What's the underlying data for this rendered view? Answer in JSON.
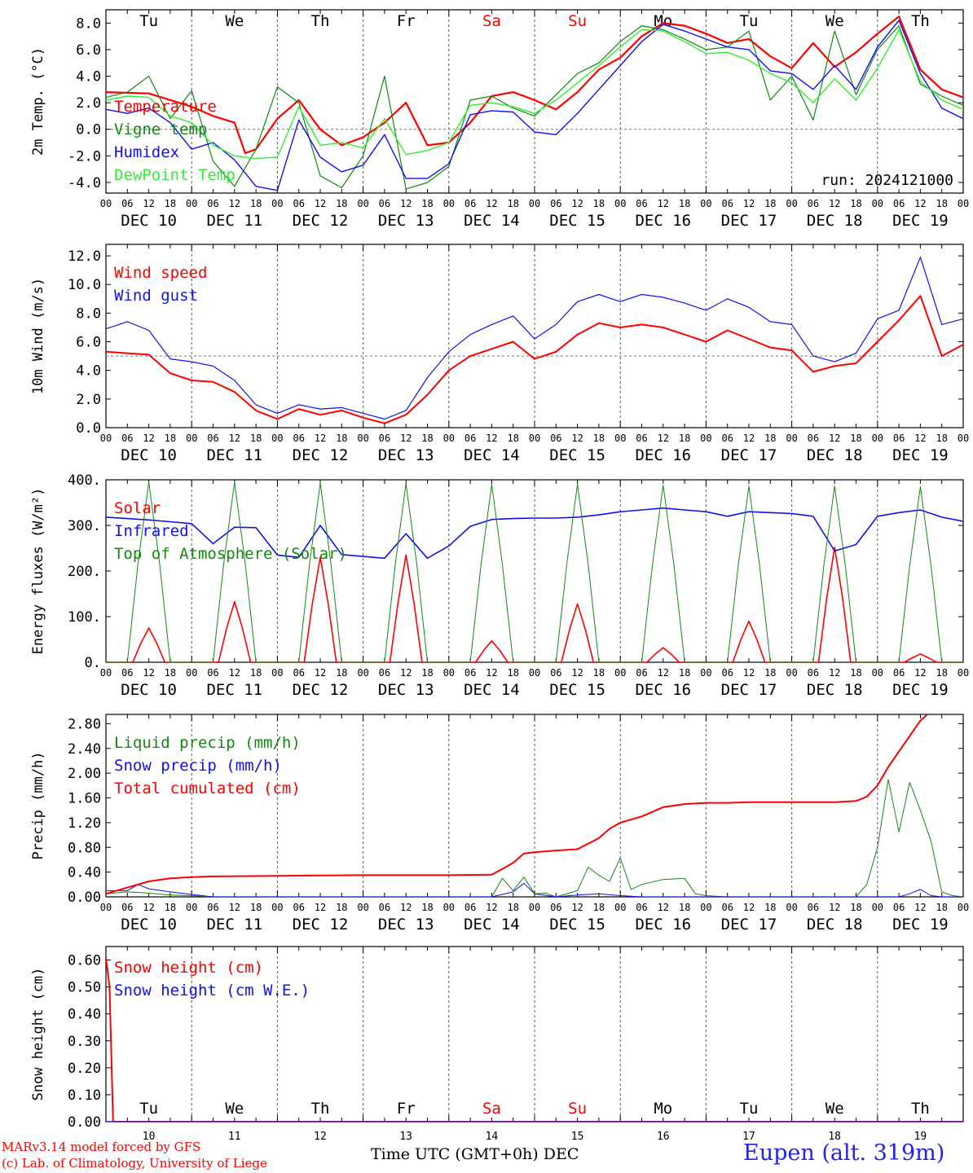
{
  "footer": {
    "credit_line1": "MARv3.14 model forced by GFS",
    "credit_line2": "(c) Lab. of Climatology, University of Liege",
    "x_title": "Time UTC (GMT+0h) DEC",
    "station": "Eupen (alt. 319m)"
  },
  "colors": {
    "red": "#ff0000",
    "green": "#118811",
    "blue": "#1111ee",
    "lightgreen": "#33ee33",
    "grid": "#555555"
  },
  "days": {
    "weekday_labels": [
      "Tu",
      "We",
      "Th",
      "Fr",
      "Sa",
      "Su",
      "Mo",
      "Tu",
      "We",
      "Th"
    ],
    "weekend_flags": [
      false,
      false,
      false,
      false,
      true,
      true,
      false,
      false,
      false,
      false
    ],
    "date_labels": [
      "DEC 10",
      "DEC 11",
      "DEC 12",
      "DEC 13",
      "DEC 14",
      "DEC 15",
      "DEC 16",
      "DEC 17",
      "DEC 18",
      "DEC 19"
    ],
    "day_numbers": [
      "10",
      "11",
      "12",
      "13",
      "14",
      "15",
      "16",
      "17",
      "18",
      "19"
    ],
    "hour_ticks": [
      "00",
      "06",
      "12",
      "18"
    ]
  },
  "chart_data": [
    {
      "type": "line",
      "ylabel": "2m Temp. (°C)",
      "ylim": [
        -4.8,
        9.0
      ],
      "yticks": [
        "-4.0",
        "-2.0",
        "0.0",
        "2.0",
        "4.0",
        "6.0",
        "8.0"
      ],
      "ytick_values": [
        -4,
        -2,
        0,
        2,
        4,
        6,
        8
      ],
      "reference_line": 0,
      "annotation": "run: 2024121000",
      "x_unit": "hours since DEC 10 00 UTC",
      "series": [
        {
          "name": "Temperature",
          "color": "#ff0000",
          "width": 2.2,
          "x": [
            0,
            12,
            24,
            30,
            36,
            39,
            42,
            48,
            54,
            60,
            66,
            72,
            78,
            84,
            90,
            96,
            102,
            108,
            114,
            120,
            126,
            132,
            138,
            144,
            150,
            156,
            162,
            168,
            174,
            180,
            186,
            192,
            198,
            204,
            210,
            216,
            222,
            228,
            234,
            240
          ],
          "y": [
            2.8,
            2.7,
            1.7,
            1.0,
            0.5,
            -1.8,
            -1.5,
            0.8,
            2.2,
            0.0,
            -1.2,
            -0.6,
            0.5,
            2.0,
            -1.2,
            -1.0,
            0.5,
            2.5,
            2.8,
            2.2,
            1.5,
            2.8,
            4.5,
            5.4,
            7.0,
            8.0,
            7.8,
            7.2,
            6.5,
            6.8,
            5.5,
            4.6,
            6.5,
            4.7,
            5.8,
            7.2,
            8.5,
            4.5,
            3.0,
            2.4
          ]
        },
        {
          "name": "Vigne temp",
          "color": "#118811",
          "width": 1.2,
          "x": [
            0,
            6,
            12,
            18,
            24,
            30,
            36,
            42,
            48,
            54,
            60,
            66,
            72,
            78,
            84,
            90,
            96,
            102,
            108,
            114,
            120,
            126,
            132,
            138,
            144,
            150,
            156,
            162,
            168,
            174,
            180,
            186,
            192,
            198,
            204,
            210,
            216,
            222,
            228,
            234,
            240
          ],
          "y": [
            2.4,
            2.8,
            4.0,
            0.8,
            2.9,
            -2.4,
            -4.3,
            -1.5,
            3.2,
            2.0,
            -3.5,
            -4.4,
            -2.0,
            4.0,
            -4.5,
            -4.0,
            -2.8,
            2.2,
            2.5,
            1.6,
            1.0,
            2.6,
            4.2,
            5.0,
            6.6,
            7.8,
            7.5,
            6.8,
            6.0,
            6.2,
            7.4,
            2.2,
            4.0,
            0.7,
            7.4,
            2.6,
            6.0,
            7.8,
            3.4,
            2.5,
            1.8
          ]
        },
        {
          "name": "Humidex",
          "color": "#1111ee",
          "width": 1.4,
          "x": [
            0,
            6,
            12,
            18,
            24,
            30,
            36,
            42,
            48,
            54,
            60,
            66,
            72,
            78,
            84,
            90,
            96,
            102,
            108,
            114,
            120,
            126,
            132,
            138,
            144,
            150,
            156,
            162,
            168,
            174,
            180,
            186,
            192,
            198,
            204,
            210,
            216,
            222,
            228,
            234,
            240
          ],
          "y": [
            1.5,
            1.2,
            1.6,
            0.5,
            -1.5,
            -1.0,
            -2.3,
            -4.3,
            -4.6,
            0.7,
            -2.1,
            -3.2,
            -2.7,
            -0.4,
            -3.7,
            -3.7,
            -2.6,
            1.1,
            1.4,
            1.3,
            -0.2,
            -0.4,
            1.2,
            3.0,
            4.8,
            6.6,
            7.9,
            7.4,
            6.8,
            6.2,
            6.0,
            4.4,
            4.2,
            3.0,
            4.8,
            3.0,
            6.2,
            8.2,
            4.2,
            1.6,
            0.8
          ]
        },
        {
          "name": "DewPoint Temp",
          "color": "#33ee33",
          "width": 1.4,
          "x": [
            0,
            6,
            12,
            18,
            24,
            30,
            36,
            42,
            48,
            54,
            60,
            66,
            72,
            78,
            84,
            90,
            96,
            102,
            108,
            114,
            120,
            126,
            132,
            138,
            144,
            150,
            156,
            162,
            168,
            174,
            180,
            186,
            192,
            198,
            204,
            210,
            216,
            222,
            228,
            234,
            240
          ],
          "y": [
            2.2,
            2.5,
            2.4,
            1.0,
            0.5,
            -1.2,
            -2.0,
            -2.2,
            -2.1,
            1.7,
            -1.2,
            -1.0,
            -1.4,
            0.8,
            -1.9,
            -1.6,
            -1.0,
            1.8,
            2.0,
            1.7,
            1.2,
            2.2,
            3.5,
            4.8,
            6.2,
            7.5,
            7.4,
            6.6,
            5.7,
            5.8,
            5.2,
            4.2,
            3.5,
            2.0,
            3.8,
            2.2,
            4.6,
            7.5,
            3.6,
            2.2,
            1.5
          ]
        }
      ]
    },
    {
      "type": "line",
      "ylabel": "10m Wind (m/s)",
      "ylim": [
        0,
        12.8
      ],
      "yticks": [
        "0.0",
        "2.0",
        "4.0",
        "6.0",
        "8.0",
        "10.0",
        "12.0"
      ],
      "ytick_values": [
        0,
        2,
        4,
        6,
        8,
        10,
        12
      ],
      "reference_line": 5,
      "series": [
        {
          "name": "Wind speed",
          "color": "#ff0000",
          "width": 2.0,
          "x": [
            0,
            6,
            12,
            18,
            24,
            30,
            36,
            42,
            48,
            54,
            60,
            66,
            72,
            78,
            84,
            90,
            96,
            102,
            108,
            114,
            120,
            126,
            132,
            138,
            144,
            150,
            156,
            162,
            168,
            174,
            180,
            186,
            192,
            198,
            204,
            210,
            216,
            222,
            228,
            234,
            240
          ],
          "y": [
            5.3,
            5.2,
            5.1,
            3.8,
            3.3,
            3.2,
            2.5,
            1.2,
            0.6,
            1.3,
            0.9,
            1.2,
            0.7,
            0.3,
            0.9,
            2.3,
            4.0,
            5.0,
            5.5,
            6.0,
            4.8,
            5.3,
            6.5,
            7.3,
            7.0,
            7.2,
            7.0,
            6.5,
            6.0,
            6.8,
            6.2,
            5.6,
            5.4,
            3.9,
            4.3,
            4.5,
            6.0,
            7.5,
            9.2,
            5.0,
            5.8
          ]
        },
        {
          "name": "Wind gust",
          "color": "#1111ee",
          "width": 1.2,
          "x": [
            0,
            6,
            12,
            18,
            24,
            30,
            36,
            42,
            48,
            54,
            60,
            66,
            72,
            78,
            84,
            90,
            96,
            102,
            108,
            114,
            120,
            126,
            132,
            138,
            144,
            150,
            156,
            162,
            168,
            174,
            180,
            186,
            192,
            198,
            204,
            210,
            216,
            222,
            228,
            234,
            240
          ],
          "y": [
            6.9,
            7.4,
            6.8,
            4.8,
            4.6,
            4.3,
            3.3,
            1.6,
            1.0,
            1.6,
            1.3,
            1.4,
            1.0,
            0.6,
            1.2,
            3.5,
            5.3,
            6.5,
            7.2,
            7.8,
            6.2,
            7.2,
            8.8,
            9.3,
            8.8,
            9.3,
            9.1,
            8.7,
            8.2,
            9.0,
            8.4,
            7.4,
            7.2,
            5.0,
            4.6,
            5.2,
            7.6,
            8.2,
            11.9,
            7.2,
            7.6
          ]
        }
      ]
    },
    {
      "type": "line",
      "ylabel": "Energy fluxes (W/m²)",
      "ylim": [
        0,
        400
      ],
      "yticks": [
        "0.",
        "100.",
        "200.",
        "300.",
        "400."
      ],
      "ytick_values": [
        0,
        100,
        200,
        300,
        400
      ],
      "series": [
        {
          "name": "Solar",
          "color": "#ff0000",
          "width": 1.6,
          "daily_peaks": [
            75,
            133,
            230,
            235,
            47,
            128,
            32,
            90,
            252,
            18
          ]
        },
        {
          "name": "Infrared",
          "color": "#1111ee",
          "width": 1.6,
          "x": [
            0,
            6,
            12,
            18,
            24,
            30,
            36,
            42,
            48,
            54,
            60,
            66,
            72,
            78,
            84,
            90,
            96,
            102,
            108,
            114,
            120,
            126,
            132,
            138,
            144,
            150,
            156,
            162,
            168,
            174,
            180,
            186,
            192,
            198,
            204,
            210,
            216,
            222,
            228,
            234,
            240
          ],
          "y": [
            318,
            315,
            312,
            308,
            304,
            260,
            296,
            295,
            235,
            230,
            300,
            236,
            232,
            228,
            282,
            228,
            255,
            298,
            313,
            315,
            316,
            316,
            318,
            323,
            330,
            334,
            338,
            334,
            330,
            320,
            330,
            328,
            326,
            320,
            244,
            258,
            320,
            328,
            334,
            318,
            309
          ]
        },
        {
          "name": "Top of Atmosphere (Solar)",
          "color": "#118811",
          "width": 1.0,
          "daily_peaks": [
            395,
            395,
            393,
            392,
            390,
            390,
            388,
            386,
            386,
            385
          ]
        }
      ]
    },
    {
      "type": "line",
      "ylabel": "Precip (mm/h)",
      "ylim": [
        0,
        2.95
      ],
      "yticks": [
        "0.00",
        "0.40",
        "0.80",
        "1.20",
        "1.60",
        "2.00",
        "2.40",
        "2.80"
      ],
      "ytick_values": [
        0,
        0.4,
        0.8,
        1.2,
        1.6,
        2.0,
        2.4,
        2.8
      ],
      "series": [
        {
          "name": "Liquid precip (mm/h)",
          "color": "#118811",
          "width": 1.0,
          "x": [
            0,
            6,
            12,
            18,
            24,
            30,
            108,
            111,
            114,
            117,
            120,
            123,
            126,
            132,
            135,
            138,
            141,
            144,
            147,
            150,
            156,
            162,
            165,
            168,
            174,
            210,
            213,
            216,
            219,
            222,
            225,
            228,
            231,
            234,
            237,
            240
          ],
          "y": [
            0.05,
            0.08,
            0.06,
            0.03,
            0.02,
            0,
            0,
            0.3,
            0.1,
            0.32,
            0.05,
            0.06,
            0,
            0.1,
            0.48,
            0.35,
            0.25,
            0.63,
            0.12,
            0.2,
            0.28,
            0.3,
            0.05,
            0.02,
            0,
            0,
            0.2,
            0.8,
            1.9,
            1.05,
            1.85,
            1.4,
            0.9,
            0.08,
            0.02,
            0
          ]
        },
        {
          "name": "Snow precip (mm/h)",
          "color": "#1111ee",
          "width": 1.0,
          "x": [
            0,
            6,
            9,
            12,
            18,
            24,
            30,
            108,
            114,
            117,
            120,
            126,
            132,
            138,
            144,
            150,
            168,
            222,
            225,
            228,
            231,
            234,
            240
          ],
          "y": [
            0.1,
            0.1,
            0.2,
            0.13,
            0.08,
            0.04,
            0,
            0,
            0.08,
            0.22,
            0.05,
            0,
            0.03,
            0.05,
            0.02,
            0,
            0,
            0,
            0.05,
            0.12,
            0.02,
            0,
            0
          ]
        },
        {
          "name": "Total cumulated (cm)",
          "color": "#ff0000",
          "width": 2.0,
          "x": [
            0,
            6,
            12,
            18,
            24,
            30,
            48,
            72,
            96,
            108,
            111,
            114,
            117,
            120,
            126,
            132,
            138,
            141,
            144,
            147,
            150,
            156,
            162,
            168,
            174,
            180,
            186,
            192,
            198,
            204,
            210,
            213,
            216,
            219,
            222,
            225,
            228,
            231,
            234,
            237,
            240
          ],
          "y": [
            0.05,
            0.15,
            0.25,
            0.3,
            0.32,
            0.33,
            0.34,
            0.35,
            0.35,
            0.36,
            0.45,
            0.55,
            0.7,
            0.72,
            0.75,
            0.77,
            0.95,
            1.1,
            1.2,
            1.25,
            1.3,
            1.45,
            1.5,
            1.52,
            1.52,
            1.53,
            1.53,
            1.53,
            1.53,
            1.53,
            1.55,
            1.62,
            1.8,
            2.1,
            2.35,
            2.6,
            2.85,
            3.0,
            3.0,
            3.0,
            3.0
          ]
        }
      ]
    },
    {
      "type": "line",
      "ylabel": "Snow height (cm)",
      "ylim": [
        0,
        0.65
      ],
      "yticks": [
        "0.00",
        "0.10",
        "0.20",
        "0.30",
        "0.40",
        "0.50",
        "0.60"
      ],
      "ytick_values": [
        0,
        0.1,
        0.2,
        0.3,
        0.4,
        0.5,
        0.6
      ],
      "series": [
        {
          "name": "Snow height (cm)",
          "color": "#ff0000",
          "width": 2.0,
          "x": [
            0,
            1,
            2,
            240
          ],
          "y": [
            0.61,
            0.5,
            0,
            0
          ]
        },
        {
          "name": "Snow height (cm W.E.)",
          "color": "#1111ee",
          "width": 1.2,
          "x": [
            0,
            240
          ],
          "y": [
            0,
            0
          ]
        }
      ]
    }
  ]
}
